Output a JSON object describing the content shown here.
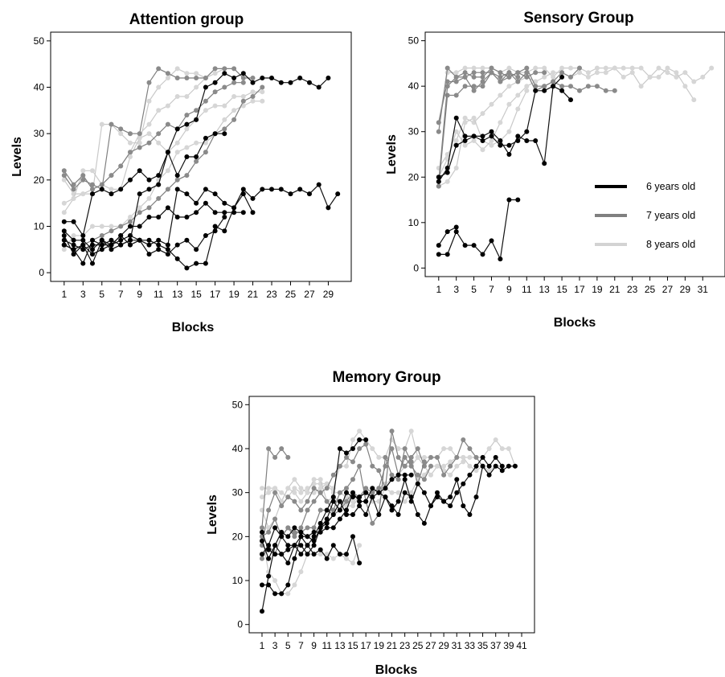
{
  "charts": [
    {
      "id": "attention",
      "type": "line",
      "title": "Attention group",
      "xlabel": "Blocks",
      "ylabel": "Levels",
      "ylim": [
        0,
        50
      ],
      "yticks": [
        0,
        10,
        20,
        30,
        40,
        50
      ],
      "xlim": [
        1,
        30
      ],
      "xticks": [
        1,
        3,
        5,
        7,
        9,
        11,
        13,
        15,
        17,
        19,
        21,
        23,
        25,
        27,
        29
      ],
      "grid": false,
      "series": [
        {
          "group": "6",
          "values": [
            11,
            11,
            8,
            17,
            18,
            17,
            18,
            20,
            22,
            20,
            21,
            26,
            31,
            32,
            33,
            40,
            41,
            43,
            42,
            43,
            41,
            42,
            42,
            41,
            41,
            42,
            41,
            40,
            42
          ]
        },
        {
          "group": "6",
          "values": [
            6,
            5,
            2,
            7,
            6,
            7,
            6,
            7,
            7,
            7,
            6,
            5,
            3,
            1,
            2,
            2,
            10,
            9,
            14,
            18,
            16,
            18,
            18,
            18,
            17,
            18,
            17,
            19,
            14,
            17
          ]
        },
        {
          "group": "6",
          "values": [
            7,
            6,
            5,
            6,
            6,
            6,
            8,
            10,
            10,
            12,
            12,
            14,
            12,
            12,
            13,
            15,
            13,
            13,
            13,
            13
          ]
        },
        {
          "group": "6",
          "values": [
            8,
            4,
            6,
            4,
            5,
            6,
            7,
            8,
            7,
            6,
            7,
            6,
            18,
            17,
            15,
            18,
            17,
            15,
            14,
            17,
            13
          ]
        },
        {
          "group": "6",
          "values": [
            9,
            7,
            7,
            5,
            7,
            5,
            6,
            7,
            17,
            18,
            19,
            26,
            21,
            25,
            25,
            29,
            30,
            30
          ]
        },
        {
          "group": "6",
          "values": [
            6,
            5,
            6,
            2,
            7,
            6,
            8,
            6,
            7,
            4,
            5,
            4,
            6,
            7,
            5,
            8,
            9,
            12
          ]
        },
        {
          "group": "7",
          "values": [
            22,
            19,
            21,
            18,
            19,
            21,
            23,
            26,
            27,
            28,
            30,
            32,
            31,
            34,
            35,
            37,
            39,
            40,
            41,
            41
          ]
        },
        {
          "group": "7",
          "values": [
            21,
            18,
            20,
            19,
            18,
            32,
            31,
            30,
            30,
            41,
            44,
            43,
            42,
            42,
            42,
            42,
            44,
            44,
            44,
            42,
            42
          ]
        },
        {
          "group": "7",
          "values": [
            6,
            5,
            6,
            7,
            8,
            9,
            10,
            11,
            13,
            14,
            16,
            18,
            20,
            21,
            24,
            26,
            30,
            31,
            33,
            37,
            38,
            40
          ]
        },
        {
          "group": "8",
          "values": [
            20,
            17,
            17,
            17,
            32,
            32,
            30,
            28,
            28,
            37,
            40,
            42,
            44,
            43,
            43,
            42,
            43,
            44
          ]
        },
        {
          "group": "8",
          "values": [
            13,
            16,
            22,
            22,
            19,
            18,
            18,
            25,
            29,
            30,
            28,
            26,
            28,
            31,
            33,
            35,
            36,
            36,
            38,
            38,
            39,
            39
          ]
        },
        {
          "group": "8",
          "values": [
            5,
            8,
            8,
            10,
            10,
            10,
            10,
            12,
            14,
            16,
            20,
            22,
            26,
            27,
            28,
            28,
            30,
            33,
            35,
            36,
            37,
            37
          ]
        },
        {
          "group": "8",
          "values": [
            15,
            16,
            17,
            18,
            19,
            21,
            23,
            26,
            30,
            32,
            35,
            36,
            38,
            38,
            40,
            42
          ]
        }
      ]
    },
    {
      "id": "sensory",
      "type": "line",
      "title": "Sensory Group",
      "xlabel": "Blocks",
      "ylabel": "Levels",
      "ylim": [
        0,
        50
      ],
      "yticks": [
        0,
        10,
        20,
        30,
        40,
        50
      ],
      "xlim": [
        1,
        32
      ],
      "xticks": [
        1,
        3,
        5,
        7,
        9,
        11,
        13,
        15,
        17,
        19,
        21,
        23,
        25,
        27,
        29,
        31
      ],
      "grid": false,
      "legend": {
        "position": "right",
        "items": [
          {
            "label": "6 years old",
            "color": "#000000"
          },
          {
            "label": "7 years old",
            "color": "#808080"
          },
          {
            "label": "8 years old",
            "color": "#d3d3d3"
          }
        ]
      },
      "series": [
        {
          "group": "6",
          "values": [
            3,
            3,
            8,
            5,
            5,
            3,
            6,
            2,
            15,
            15
          ]
        },
        {
          "group": "6",
          "values": [
            5,
            8,
            9
          ]
        },
        {
          "group": "6",
          "values": [
            19,
            22,
            33,
            29,
            29,
            29,
            30,
            28,
            25,
            29,
            28,
            28,
            23,
            40,
            39,
            37
          ]
        },
        {
          "group": "6",
          "values": [
            20,
            21,
            27,
            28,
            29,
            28,
            29,
            27,
            27,
            28,
            30,
            39,
            39,
            40,
            42
          ]
        },
        {
          "group": "7",
          "values": [
            30,
            44,
            42,
            43,
            42,
            42,
            44,
            43,
            42,
            43,
            44,
            40,
            40,
            41,
            40,
            40,
            39,
            40,
            40,
            39,
            39
          ]
        },
        {
          "group": "7",
          "values": [
            32,
            41,
            41,
            42,
            43,
            43,
            43,
            41,
            42,
            43,
            42,
            43,
            43
          ]
        },
        {
          "group": "7",
          "values": [
            18,
            38,
            38,
            40,
            40,
            40,
            43,
            42,
            43,
            41,
            43,
            39,
            40,
            41,
            43,
            42,
            44
          ]
        },
        {
          "group": "7",
          "values": [
            19,
            40,
            42,
            42,
            39,
            41,
            43,
            41,
            43,
            42
          ]
        },
        {
          "group": "8",
          "values": [
            32,
            43,
            43,
            44,
            44,
            44,
            44,
            43,
            44,
            43,
            43,
            44,
            44,
            42,
            44,
            44,
            44,
            43,
            44,
            44,
            44,
            44,
            44,
            44,
            42,
            44,
            43,
            42,
            43,
            41,
            42,
            44
          ]
        },
        {
          "group": "8",
          "values": [
            22,
            25,
            28,
            33,
            32,
            34,
            36,
            38,
            40,
            41,
            42,
            41,
            42,
            43,
            43,
            42,
            43,
            42,
            43,
            43,
            44,
            42,
            43,
            40,
            42,
            42,
            44,
            43,
            40,
            37
          ]
        },
        {
          "group": "8",
          "values": [
            20,
            24,
            30,
            27,
            28,
            26,
            28,
            32,
            36,
            38,
            40,
            41
          ]
        },
        {
          "group": "8",
          "values": [
            18,
            19,
            22,
            32,
            33,
            28,
            27,
            28,
            30,
            35,
            39
          ]
        }
      ]
    },
    {
      "id": "memory",
      "type": "line",
      "title": "Memory Group",
      "xlabel": "Blocks",
      "ylabel": "Levels",
      "ylim": [
        0,
        50
      ],
      "yticks": [
        0,
        10,
        20,
        30,
        40,
        50
      ],
      "xlim": [
        1,
        41
      ],
      "xticks": [
        1,
        3,
        5,
        7,
        9,
        11,
        13,
        15,
        17,
        19,
        21,
        23,
        25,
        27,
        29,
        31,
        33,
        35,
        37,
        39,
        41
      ],
      "xtick_labels": [
        "1",
        "3",
        "5",
        "7",
        "9",
        "11",
        "13",
        "15",
        "17",
        "19",
        "21",
        "23",
        "25",
        "27",
        "29",
        "31",
        "33",
        "35",
        "37",
        "39",
        "41"
      ],
      "grid": false,
      "series": [
        {
          "group": "6",
          "values": [
            3,
            11,
            18,
            16,
            14,
            18,
            18,
            16,
            18,
            22,
            23,
            25,
            28,
            25,
            25,
            27,
            25,
            29,
            25,
            29,
            27,
            25,
            30,
            29,
            25,
            23,
            27,
            30,
            28,
            29,
            33,
            27,
            25,
            29,
            36,
            34,
            36,
            35,
            36,
            36
          ]
        },
        {
          "group": "6",
          "values": [
            9,
            9,
            7,
            7,
            9,
            15,
            20,
            20,
            21,
            21,
            22,
            22,
            24,
            26,
            30,
            28,
            28,
            31,
            30,
            29,
            26,
            28,
            33,
            28,
            32,
            30,
            27,
            29,
            28,
            27,
            30,
            32,
            34,
            36,
            38,
            36,
            38,
            36
          ]
        },
        {
          "group": "6",
          "values": [
            16,
            18,
            22,
            20,
            18,
            18,
            20,
            18,
            20,
            23,
            26,
            29,
            40,
            39,
            40,
            42,
            42
          ]
        },
        {
          "group": "6",
          "values": [
            21,
            17,
            16,
            16,
            17,
            18,
            16,
            18,
            16,
            17,
            15,
            18,
            16,
            16,
            20,
            14
          ]
        },
        {
          "group": "6",
          "values": [
            19,
            15,
            18,
            21,
            20,
            22,
            21,
            20,
            19,
            22,
            24,
            28,
            26,
            30,
            29,
            29,
            30,
            29,
            30,
            31,
            33,
            34,
            34,
            34
          ]
        },
        {
          "group": "7",
          "values": [
            22,
            40,
            38,
            40,
            38
          ]
        },
        {
          "group": "7",
          "values": [
            20,
            21,
            24,
            20,
            22,
            20,
            22,
            26,
            28,
            30,
            31,
            34,
            36,
            38,
            37,
            40,
            41,
            36,
            35,
            31,
            44,
            38,
            36,
            38,
            40,
            36,
            38,
            38,
            34,
            36,
            38,
            42,
            40,
            38,
            36
          ]
        },
        {
          "group": "7",
          "values": [
            18,
            26,
            30,
            27,
            29,
            28,
            26,
            28,
            31,
            30,
            28,
            26,
            30,
            31,
            33,
            36,
            28,
            23,
            25,
            38,
            34,
            33,
            40,
            37,
            32,
            37
          ]
        },
        {
          "group": "7",
          "values": [
            15,
            18,
            16,
            20,
            22,
            21,
            21,
            22,
            22,
            26,
            26,
            25,
            26,
            28,
            30,
            29,
            31,
            30,
            31,
            36,
            40,
            34,
            38,
            36,
            34,
            33,
            36
          ]
        },
        {
          "group": "8",
          "values": [
            31,
            31,
            31,
            30,
            29,
            31,
            30,
            31,
            32,
            32,
            32,
            31,
            36,
            36,
            42,
            44,
            42,
            40,
            38,
            38,
            42,
            40,
            40,
            44,
            38,
            38,
            38,
            38,
            40,
            40,
            38,
            38,
            38,
            38,
            38,
            40,
            42,
            40,
            40,
            36
          ]
        },
        {
          "group": "8",
          "values": [
            29,
            30,
            31,
            28,
            31,
            30,
            28,
            30,
            30,
            31,
            32,
            30,
            30,
            29,
            28,
            29,
            30,
            30,
            31,
            32,
            33,
            34,
            36,
            36,
            38,
            36,
            34,
            36,
            36,
            37,
            38,
            38,
            36,
            35,
            36,
            35,
            36,
            36
          ]
        },
        {
          "group": "8",
          "values": [
            20,
            12,
            10,
            7,
            7,
            9,
            12,
            16,
            16,
            16,
            16,
            15,
            16,
            15,
            14,
            18
          ]
        },
        {
          "group": "8",
          "values": [
            26,
            22,
            24,
            28,
            31,
            33,
            31,
            30,
            33,
            33,
            28,
            29,
            28,
            27,
            27,
            29,
            30,
            28,
            28,
            31,
            30,
            30,
            28,
            30,
            33,
            34,
            36,
            36,
            35,
            34,
            36,
            37
          ]
        }
      ]
    }
  ]
}
